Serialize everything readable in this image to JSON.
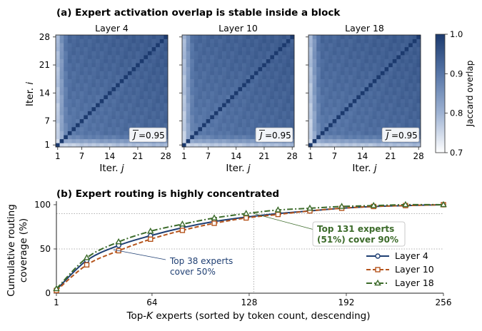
{
  "chart_data": [
    {
      "type": "heatmap",
      "title": "(a) Expert activation overlap is stable inside a block",
      "xlabel_prefix": "Iter. ",
      "xlabel_var": "j",
      "ylabel_prefix": "Iter. ",
      "ylabel_var": "i",
      "ticks": [
        "1",
        "7",
        "14",
        "21",
        "28"
      ],
      "tick_values": [
        1,
        7,
        14,
        21,
        28
      ],
      "iterations": 28,
      "panels": [
        {
          "name": "Layer 4",
          "mean_label": "=0.95"
        },
        {
          "name": "Layer 10",
          "mean_label": "=0.95"
        },
        {
          "name": "Layer 18",
          "mean_label": "=0.95"
        }
      ],
      "mean_symbol": "J",
      "colorbar": {
        "label": "Jaccard overlap",
        "ticks": [
          "0.7",
          "0.8",
          "0.9",
          "1.0"
        ],
        "tick_values": [
          0.7,
          0.8,
          0.9,
          1.0
        ],
        "range": [
          0.7,
          1.0
        ],
        "colors": [
          "#ffffff",
          "#9fb3d3",
          "#5877a8",
          "#1c3a6e"
        ]
      }
    },
    {
      "type": "line",
      "title": "(b) Expert routing is highly concentrated",
      "xlabel_pre": "Top-",
      "xlabel_var": "K",
      "xlabel_post": " experts (sorted by token count, descending)",
      "ylabel_line1": "Cumulative routing",
      "ylabel_line2": "coverage (%)",
      "xlim": [
        1,
        256
      ],
      "ylim": [
        0,
        104
      ],
      "xticks": [
        1,
        64,
        128,
        192,
        256
      ],
      "xtick_labels": [
        "1",
        "64",
        "128",
        "192",
        "256"
      ],
      "yticks": [
        0,
        50,
        100
      ],
      "ytick_labels": [
        "0",
        "50",
        "100"
      ],
      "ref_lines": {
        "y": [
          50,
          90
        ],
        "x": 131
      },
      "series": [
        {
          "name": "Layer 4",
          "color": "#1f3f73",
          "marker": "circle",
          "dash": "solid",
          "x": [
            1,
            21,
            42,
            63,
            84,
            105,
            126,
            147,
            168,
            189,
            210,
            231,
            256
          ],
          "y": [
            4,
            37,
            54,
            65,
            74,
            81,
            86,
            90,
            93,
            96,
            98,
            99,
            100
          ]
        },
        {
          "name": "Layer 10",
          "color": "#b5541c",
          "marker": "square",
          "dash": "dashed",
          "x": [
            1,
            21,
            42,
            63,
            84,
            105,
            126,
            147,
            168,
            189,
            210,
            231,
            256
          ],
          "y": [
            3,
            32,
            48,
            61,
            71,
            79,
            85,
            89,
            93,
            96,
            98,
            99,
            100
          ]
        },
        {
          "name": "Layer 18",
          "color": "#3c6b2a",
          "marker": "triangle",
          "dash": "dashdot",
          "x": [
            1,
            21,
            42,
            63,
            84,
            105,
            126,
            147,
            168,
            189,
            210,
            231,
            256
          ],
          "y": [
            5,
            40,
            58,
            70,
            78,
            85,
            90,
            94,
            96,
            98,
            99,
            100,
            100
          ]
        }
      ],
      "annotations": [
        {
          "text_lines": [
            "Top 38 experts",
            "cover 50%"
          ],
          "color": "#1f3f73",
          "target_x": 38,
          "target_y": 50
        },
        {
          "text_lines": [
            "Top 131 experts",
            "(51%) cover 90%"
          ],
          "color": "#3c6b2a",
          "target_x": 131,
          "target_y": 90
        }
      ]
    }
  ]
}
